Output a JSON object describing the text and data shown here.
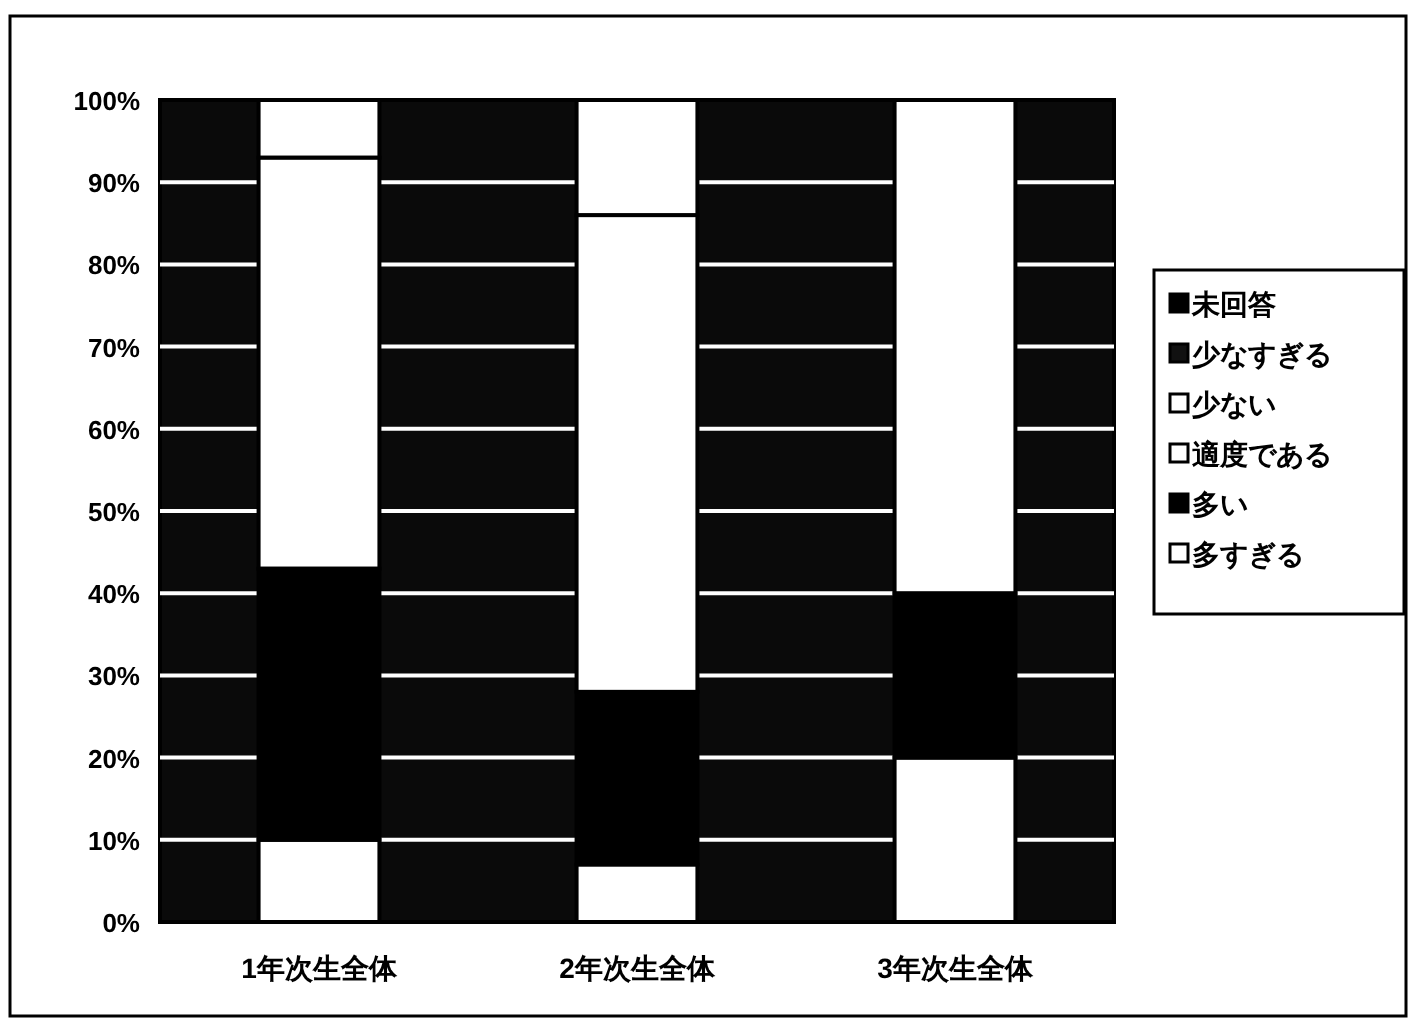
{
  "chart_data": {
    "type": "bar",
    "stacked": true,
    "categories": [
      "1年次生全体",
      "2年次生全体",
      "3年次生全体"
    ],
    "series": [
      {
        "name": "多すぎる",
        "color": "#ffffff",
        "values": [
          10,
          7,
          20
        ]
      },
      {
        "name": "多い",
        "color": "#000000",
        "values": [
          33,
          21,
          20
        ]
      },
      {
        "name": "適度である",
        "color": "#ffffff",
        "values": [
          50,
          58,
          60
        ]
      },
      {
        "name": "少ない",
        "color": "#ffffff",
        "values": [
          7,
          14,
          0
        ]
      },
      {
        "name": "少なすぎる",
        "color": "#111111",
        "values": [
          0,
          0,
          0
        ]
      },
      {
        "name": "未回答",
        "color": "#000000",
        "values": [
          0,
          0,
          0
        ]
      }
    ],
    "ylim": [
      0,
      100
    ],
    "yticks": [
      {
        "value": 0,
        "label": "0%"
      },
      {
        "value": 10,
        "label": "10%"
      },
      {
        "value": 20,
        "label": "20%"
      },
      {
        "value": 30,
        "label": "30%"
      },
      {
        "value": 40,
        "label": "40%"
      },
      {
        "value": 50,
        "label": "50%"
      },
      {
        "value": 60,
        "label": "60%"
      },
      {
        "value": 70,
        "label": "70%"
      },
      {
        "value": 80,
        "label": "80%"
      },
      {
        "value": 90,
        "label": "90%"
      },
      {
        "value": 100,
        "label": "100%"
      }
    ],
    "grid": "y",
    "legend": "right"
  }
}
